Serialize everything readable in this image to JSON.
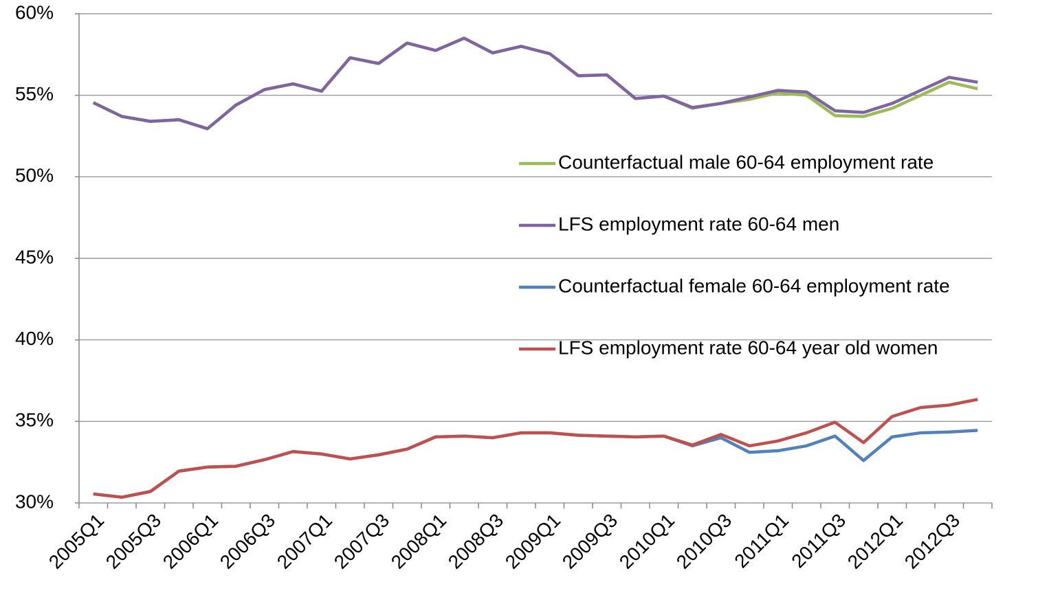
{
  "chart_data": {
    "type": "line",
    "categories": [
      "2005Q1",
      null,
      "2005Q3",
      null,
      "2006Q1",
      null,
      "2006Q3",
      null,
      "2007Q1",
      null,
      "2007Q3",
      null,
      "2008Q1",
      null,
      "2008Q3",
      null,
      "2009Q1",
      null,
      "2009Q3",
      null,
      "2010Q1",
      null,
      "2010Q3",
      null,
      "2011Q1",
      null,
      "2011Q3",
      null,
      "2012Q1",
      null,
      "2012Q3",
      null
    ],
    "series": [
      {
        "name": "Counterfactual male 60-64 employment rate",
        "color": "#9bbb59",
        "values": [
          54.55,
          53.7,
          53.4,
          53.5,
          52.95,
          54.4,
          55.35,
          55.7,
          55.25,
          57.3,
          56.95,
          58.2,
          57.75,
          58.5,
          57.6,
          58.0,
          57.55,
          56.2,
          56.25,
          54.8,
          54.95,
          54.2,
          54.5,
          54.75,
          55.15,
          55.0,
          53.75,
          53.7,
          54.2,
          55.0,
          55.8,
          55.4
        ]
      },
      {
        "name": "LFS employment rate 60-64 men",
        "color": "#8064a2",
        "values": [
          54.55,
          53.7,
          53.4,
          53.5,
          52.95,
          54.4,
          55.35,
          55.7,
          55.25,
          57.3,
          56.95,
          58.2,
          57.75,
          58.5,
          57.6,
          58.0,
          57.55,
          56.2,
          56.25,
          54.8,
          54.95,
          54.25,
          54.5,
          54.9,
          55.3,
          55.2,
          54.05,
          53.95,
          54.5,
          55.3,
          56.1,
          55.8
        ]
      },
      {
        "name": "Counterfactual female 60-64 employment rate",
        "color": "#4f81bd",
        "values": [
          30.55,
          30.35,
          30.7,
          31.95,
          32.2,
          32.25,
          32.65,
          33.15,
          33.0,
          32.7,
          32.95,
          33.3,
          34.05,
          34.1,
          34.0,
          34.3,
          34.3,
          34.15,
          34.1,
          34.05,
          34.1,
          33.5,
          34.0,
          33.1,
          33.2,
          33.5,
          34.1,
          32.6,
          34.05,
          34.3,
          34.35,
          34.45
        ]
      },
      {
        "name": "LFS employment rate 60-64 year old women",
        "color": "#c0504d",
        "values": [
          30.55,
          30.35,
          30.7,
          31.95,
          32.2,
          32.25,
          32.65,
          33.15,
          33.0,
          32.7,
          32.95,
          33.3,
          34.05,
          34.1,
          34.0,
          34.3,
          34.3,
          34.15,
          34.1,
          34.05,
          34.1,
          33.55,
          34.2,
          33.5,
          33.8,
          34.3,
          34.95,
          33.7,
          35.3,
          35.85,
          36.0,
          36.35
        ]
      }
    ],
    "ylim": [
      30,
      60
    ],
    "yticks": [
      {
        "value": 30,
        "label": "30%"
      },
      {
        "value": 35,
        "label": "35%"
      },
      {
        "value": 40,
        "label": "40%"
      },
      {
        "value": 45,
        "label": "45%"
      },
      {
        "value": 50,
        "label": "50%"
      },
      {
        "value": 55,
        "label": "55%"
      },
      {
        "value": 60,
        "label": "60%"
      }
    ],
    "grid": true
  }
}
